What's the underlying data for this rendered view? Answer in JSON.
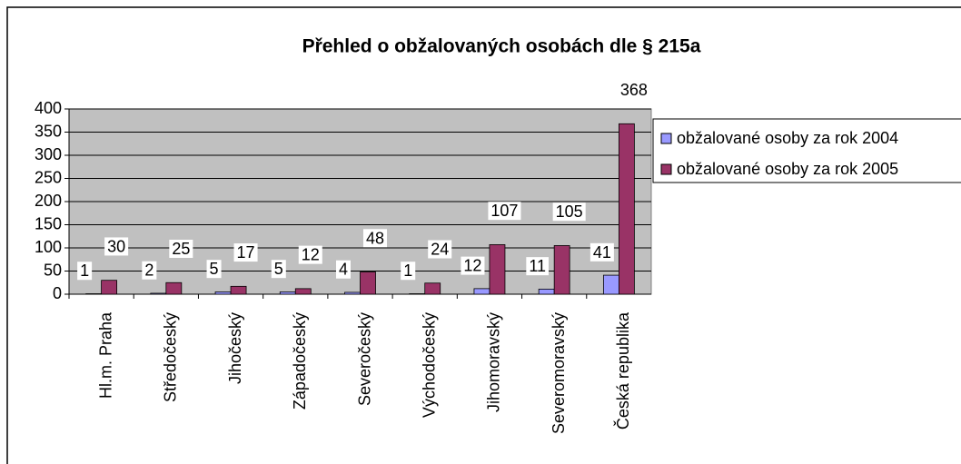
{
  "chart_data": {
    "type": "bar",
    "title": "Přehled o obžalovaných osobách dle § 215a",
    "categories": [
      "Hl.m. Praha",
      "Středočeský",
      "Jihočeský",
      "Západočeský",
      "Severočeský",
      "Východočeský",
      "Jihomoravský",
      "Severomoravský",
      "Česká republika"
    ],
    "series": [
      {
        "name": "obžalované osoby za rok 2004",
        "color": "#9999ff",
        "values": [
          1,
          2,
          5,
          5,
          4,
          1,
          12,
          11,
          41
        ]
      },
      {
        "name": "obžalované osoby za rok 2005",
        "color": "#993366",
        "values": [
          30,
          25,
          17,
          12,
          48,
          24,
          107,
          105,
          368
        ]
      }
    ],
    "ylim": [
      0,
      400
    ],
    "yticks": [
      0,
      50,
      100,
      150,
      200,
      250,
      300,
      350,
      400
    ],
    "grid": true,
    "legend": "right",
    "plot_background": "#c0c0c0"
  }
}
